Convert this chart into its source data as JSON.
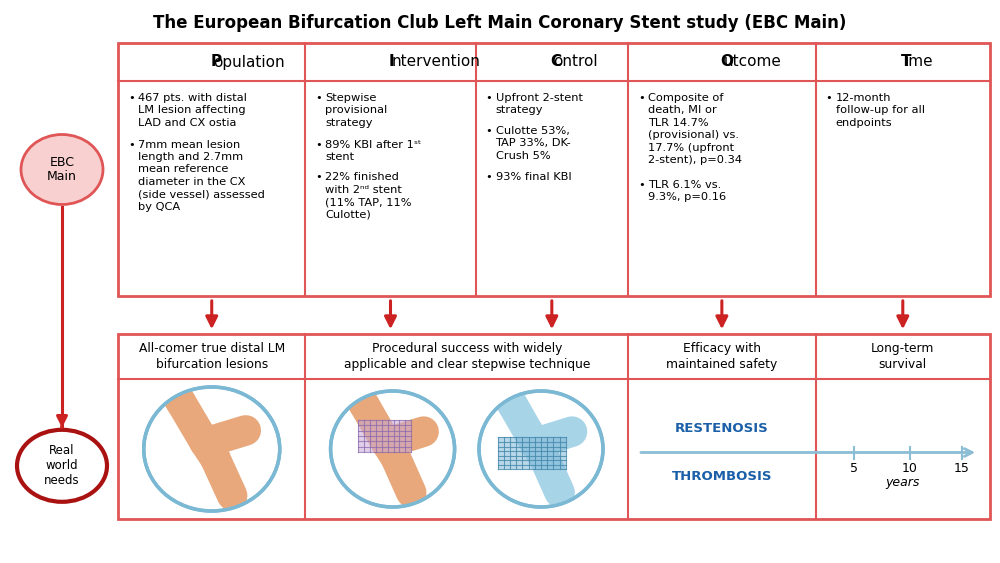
{
  "title": "The European Bifurcation Club Left Main Coronary Stent study (EBC Main)",
  "title_fontsize": 12,
  "background_color": "#ffffff",
  "border_color": "#e05555",
  "arrow_color": "#cc2222",
  "picot_headers": [
    "Population",
    "Intervention",
    "Control",
    "Outcome",
    "Time"
  ],
  "picot_bold_letters": [
    "P",
    "I",
    "C",
    "O",
    "T"
  ],
  "pop_bullets": [
    "467 pts. with distal\nLM lesion affecting\nLAD and CX ostia",
    "7mm mean lesion\nlength and 2.7mm\nmean reference\ndiameter in the CX\n(side vessel) assessed\nby QCA"
  ],
  "int_bullets": [
    "Stepwise\nprovisional\nstrategy",
    "89% KBI after 1ˢᵗ\nstent",
    "22% finished\nwith 2ⁿᵈ stent\n(11% TAP, 11%\nCulotte)"
  ],
  "ctrl_bullets": [
    "Upfront 2-stent\nstrategy",
    "Culotte 53%,\nTAP 33%, DK-\nCrush 5%",
    "93% final KBI"
  ],
  "out_bullets": [
    "Composite of\ndeath, MI or\nTLR 14.7%\n(provisional) vs.\n17.7% (upfront\n2-stent), p=0.34",
    "TLR 6.1% vs.\n9.3%, p=0.16"
  ],
  "time_bullets": [
    "12-month\nfollow-up for all\nendpoints"
  ],
  "bot_headers": [
    "All-comer true distal LM\nbifurcation lesions",
    "Procedural success with widely\napplicable and clear stepwise technique",
    "Efficacy with\nmaintained safety",
    "Long-term\nsurvival"
  ],
  "restenosis_color": "#1a5fa8",
  "thrombosis_color": "#1a5fa8",
  "timeline_color": "#8bbdd4",
  "vessel_color": "#e8a87c",
  "vessel_outline": "#c07040",
  "stent_lavender": "#c8a8d8",
  "stent_blue": "#80b8d8",
  "circle_outline_ebc": "#e05555",
  "circle_fill_ebc": "#f8d0d0",
  "circle_outline_real": "#aa1111",
  "circle_fill_real": "#ffffff"
}
